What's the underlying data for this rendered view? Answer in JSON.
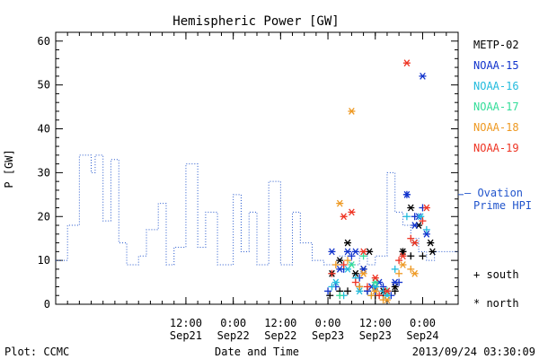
{
  "chart_data": {
    "type": "scatter",
    "title": "Hemispheric Power [GW]",
    "ylabel": "P [GW]",
    "xlabel": "Date and Time",
    "ylim": [
      0,
      62
    ],
    "xlim": [
      "2013-09-20T03:00",
      "2013-09-24T09:00"
    ],
    "yticks": [
      0,
      10,
      20,
      30,
      40,
      50,
      60
    ],
    "xticks": [
      {
        "t": "2013-09-21T12:00",
        "time": "12:00",
        "date": "Sep21"
      },
      {
        "t": "2013-09-22T00:00",
        "time": "0:00",
        "date": "Sep22"
      },
      {
        "t": "2013-09-22T12:00",
        "time": "12:00",
        "date": "Sep22"
      },
      {
        "t": "2013-09-23T00:00",
        "time": "0:00",
        "date": "Sep23"
      },
      {
        "t": "2013-09-23T12:00",
        "time": "12:00",
        "date": "Sep23"
      },
      {
        "t": "2013-09-24T00:00",
        "time": "0:00",
        "date": "Sep24"
      }
    ],
    "legend": {
      "placement": "right",
      "marker_note_south": "+ south",
      "marker_note_north": "* north"
    },
    "ovation": {
      "label_line1": "— Ovation",
      "label_line2": "Prime HPI",
      "color": "#2255cc",
      "style": "dotted-step",
      "ref_value": 25,
      "x": [
        "2013-09-20T03:00",
        "2013-09-20T06:00",
        "2013-09-20T09:00",
        "2013-09-20T12:00",
        "2013-09-20T13:00",
        "2013-09-20T15:00",
        "2013-09-20T17:00",
        "2013-09-20T19:00",
        "2013-09-20T21:00",
        "2013-09-21T00:00",
        "2013-09-21T02:00",
        "2013-09-21T05:00",
        "2013-09-21T07:00",
        "2013-09-21T09:00",
        "2013-09-21T12:00",
        "2013-09-21T15:00",
        "2013-09-21T17:00",
        "2013-09-21T20:00",
        "2013-09-22T00:00",
        "2013-09-22T02:00",
        "2013-09-22T04:00",
        "2013-09-22T06:00",
        "2013-09-22T09:00",
        "2013-09-22T12:00",
        "2013-09-22T15:00",
        "2013-09-22T17:00",
        "2013-09-22T20:00",
        "2013-09-22T23:00",
        "2013-09-23T01:00",
        "2013-09-23T03:00",
        "2013-09-23T06:00",
        "2013-09-23T08:00",
        "2013-09-23T10:00",
        "2013-09-23T12:00",
        "2013-09-23T15:00",
        "2013-09-23T17:00",
        "2013-09-23T19:00",
        "2013-09-23T21:00",
        "2013-09-23T23:00",
        "2013-09-24T01:00",
        "2013-09-24T03:00"
      ],
      "y": [
        10,
        18,
        34,
        30,
        34,
        19,
        33,
        14,
        9,
        11,
        17,
        23,
        9,
        13,
        32,
        13,
        21,
        9,
        25,
        12,
        21,
        9,
        28,
        9,
        21,
        14,
        10,
        9,
        9,
        11,
        9,
        12,
        9,
        11,
        30,
        21,
        18,
        15,
        12,
        10,
        12
      ]
    },
    "series": [
      {
        "name": "METP-02",
        "color": "#000000",
        "south": [
          [
            "2013-09-23T00:30",
            2
          ],
          [
            "2013-09-23T03:00",
            3
          ],
          [
            "2013-09-23T05:00",
            3
          ],
          [
            "2013-09-23T08:00",
            4
          ],
          [
            "2013-09-23T10:00",
            3
          ],
          [
            "2013-09-23T12:00",
            2
          ],
          [
            "2013-09-23T14:00",
            2
          ],
          [
            "2013-09-23T17:00",
            3
          ],
          [
            "2013-09-23T19:00",
            12
          ],
          [
            "2013-09-23T21:00",
            11
          ],
          [
            "2013-09-24T00:00",
            11
          ]
        ],
        "north": [
          [
            "2013-09-23T01:00",
            7
          ],
          [
            "2013-09-23T03:00",
            10
          ],
          [
            "2013-09-23T05:00",
            14
          ],
          [
            "2013-09-23T07:00",
            7
          ],
          [
            "2013-09-23T09:00",
            8
          ],
          [
            "2013-09-23T10:30",
            12
          ],
          [
            "2013-09-23T12:00",
            4
          ],
          [
            "2013-09-23T14:00",
            3
          ],
          [
            "2013-09-23T17:00",
            4
          ],
          [
            "2013-09-23T19:00",
            12
          ],
          [
            "2013-09-23T21:00",
            22
          ],
          [
            "2013-09-23T23:00",
            18
          ],
          [
            "2013-09-24T02:00",
            14
          ],
          [
            "2013-09-24T02:30",
            12
          ]
        ]
      },
      {
        "name": "NOAA-15",
        "color": "#1133cc",
        "south": [
          [
            "2013-09-23T00:00",
            3
          ],
          [
            "2013-09-23T02:00",
            4
          ],
          [
            "2013-09-23T04:00",
            8
          ],
          [
            "2013-09-23T06:00",
            11
          ],
          [
            "2013-09-23T08:00",
            6
          ],
          [
            "2013-09-23T10:00",
            3
          ],
          [
            "2013-09-23T12:00",
            3
          ],
          [
            "2013-09-23T14:00",
            4
          ],
          [
            "2013-09-23T16:00",
            2
          ],
          [
            "2013-09-23T18:00",
            5
          ],
          [
            "2013-09-23T20:00",
            25
          ],
          [
            "2013-09-23T22:00",
            20
          ],
          [
            "2013-09-24T00:00",
            22
          ]
        ],
        "north": [
          [
            "2013-09-23T01:00",
            12
          ],
          [
            "2013-09-23T03:00",
            8
          ],
          [
            "2013-09-23T05:00",
            12
          ],
          [
            "2013-09-23T07:00",
            12
          ],
          [
            "2013-09-23T09:00",
            8
          ],
          [
            "2013-09-23T11:00",
            4
          ],
          [
            "2013-09-23T13:00",
            5
          ],
          [
            "2013-09-23T15:00",
            3
          ],
          [
            "2013-09-23T17:00",
            5
          ],
          [
            "2013-09-23T20:00",
            25
          ],
          [
            "2013-09-23T22:00",
            18
          ],
          [
            "2013-09-23T23:00",
            20
          ],
          [
            "2013-09-24T00:00",
            52
          ],
          [
            "2013-09-24T01:00",
            16
          ]
        ]
      },
      {
        "name": "NOAA-16",
        "color": "#22bbdd",
        "south": [
          [
            "2013-09-23T01:00",
            4
          ],
          [
            "2013-09-23T04:00",
            2
          ],
          [
            "2013-09-23T07:00",
            6
          ],
          [
            "2013-09-23T11:00",
            2
          ],
          [
            "2013-09-23T14:00",
            3
          ],
          [
            "2013-09-23T17:00",
            8
          ],
          [
            "2013-09-23T20:00",
            20
          ],
          [
            "2013-09-24T01:00",
            17
          ]
        ],
        "north": [
          [
            "2013-09-23T02:00",
            5
          ],
          [
            "2013-09-23T05:00",
            8
          ],
          [
            "2013-09-23T08:00",
            3
          ],
          [
            "2013-09-23T12:00",
            4
          ],
          [
            "2013-09-23T15:00",
            2
          ],
          [
            "2013-09-23T22:00",
            14
          ],
          [
            "2013-09-23T23:30",
            20
          ]
        ]
      },
      {
        "name": "NOAA-17",
        "color": "#33dd99",
        "south": [
          [
            "2013-09-23T03:00",
            2
          ],
          [
            "2013-09-23T09:00",
            11
          ],
          [
            "2013-09-23T15:00",
            3
          ]
        ],
        "north": [
          [
            "2013-09-23T06:00",
            9
          ],
          [
            "2013-09-23T12:00",
            5
          ]
        ]
      },
      {
        "name": "NOAA-18",
        "color": "#ee9922",
        "south": [
          [
            "2013-09-23T02:00",
            9
          ],
          [
            "2013-09-23T05:00",
            10
          ],
          [
            "2013-09-23T08:00",
            4
          ],
          [
            "2013-09-23T11:00",
            2
          ],
          [
            "2013-09-23T14:00",
            1
          ],
          [
            "2013-09-23T18:00",
            7
          ],
          [
            "2013-09-23T21:00",
            8
          ]
        ],
        "north": [
          [
            "2013-09-23T03:00",
            23
          ],
          [
            "2013-09-23T06:00",
            44
          ],
          [
            "2013-09-23T09:00",
            7
          ],
          [
            "2013-09-23T12:00",
            3
          ],
          [
            "2013-09-23T15:00",
            1
          ],
          [
            "2013-09-23T19:00",
            9
          ],
          [
            "2013-09-23T22:00",
            7
          ]
        ]
      },
      {
        "name": "NOAA-19",
        "color": "#ee3322",
        "south": [
          [
            "2013-09-23T01:00",
            7
          ],
          [
            "2013-09-23T04:00",
            9
          ],
          [
            "2013-09-23T07:00",
            5
          ],
          [
            "2013-09-23T10:00",
            4
          ],
          [
            "2013-09-23T13:00",
            2
          ],
          [
            "2013-09-23T18:00",
            10
          ],
          [
            "2013-09-23T21:00",
            15
          ],
          [
            "2013-09-24T00:00",
            19
          ]
        ],
        "north": [
          [
            "2013-09-23T04:00",
            20
          ],
          [
            "2013-09-23T06:00",
            21
          ],
          [
            "2013-09-23T09:00",
            12
          ],
          [
            "2013-09-23T12:00",
            6
          ],
          [
            "2013-09-23T15:00",
            3
          ],
          [
            "2013-09-23T19:00",
            11
          ],
          [
            "2013-09-23T20:00",
            55
          ],
          [
            "2013-09-23T22:00",
            14
          ],
          [
            "2013-09-24T01:00",
            22
          ]
        ]
      }
    ]
  },
  "footer": {
    "left": "Plot: CCMC",
    "center": "Date and Time",
    "right": "2013/09/24 03:30:09"
  }
}
